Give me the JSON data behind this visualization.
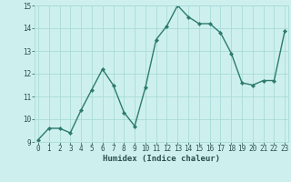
{
  "x": [
    0,
    1,
    2,
    3,
    4,
    5,
    6,
    7,
    8,
    9,
    10,
    11,
    12,
    13,
    14,
    15,
    16,
    17,
    18,
    19,
    20,
    21,
    22,
    23
  ],
  "y": [
    9.1,
    9.6,
    9.6,
    9.4,
    10.4,
    11.3,
    12.2,
    11.5,
    10.3,
    9.7,
    11.4,
    13.5,
    14.1,
    15.0,
    14.5,
    14.2,
    14.2,
    13.8,
    12.9,
    11.6,
    11.5,
    11.7,
    11.7,
    13.9
  ],
  "line_color": "#2d7a6e",
  "marker": "D",
  "marker_size": 2.2,
  "bg_color": "#cdf0ee",
  "grid_color": "#a8dbd8",
  "xlabel": "Humidex (Indice chaleur)",
  "ylim": [
    9,
    15
  ],
  "xlim": [
    -0.3,
    23.3
  ],
  "yticks": [
    9,
    10,
    11,
    12,
    13,
    14,
    15
  ],
  "xticks": [
    0,
    1,
    2,
    3,
    4,
    5,
    6,
    7,
    8,
    9,
    10,
    11,
    12,
    13,
    14,
    15,
    16,
    17,
    18,
    19,
    20,
    21,
    22,
    23
  ],
  "font_color": "#2a5050",
  "linewidth": 1.0,
  "tick_fontsize": 5.5,
  "xlabel_fontsize": 6.5
}
